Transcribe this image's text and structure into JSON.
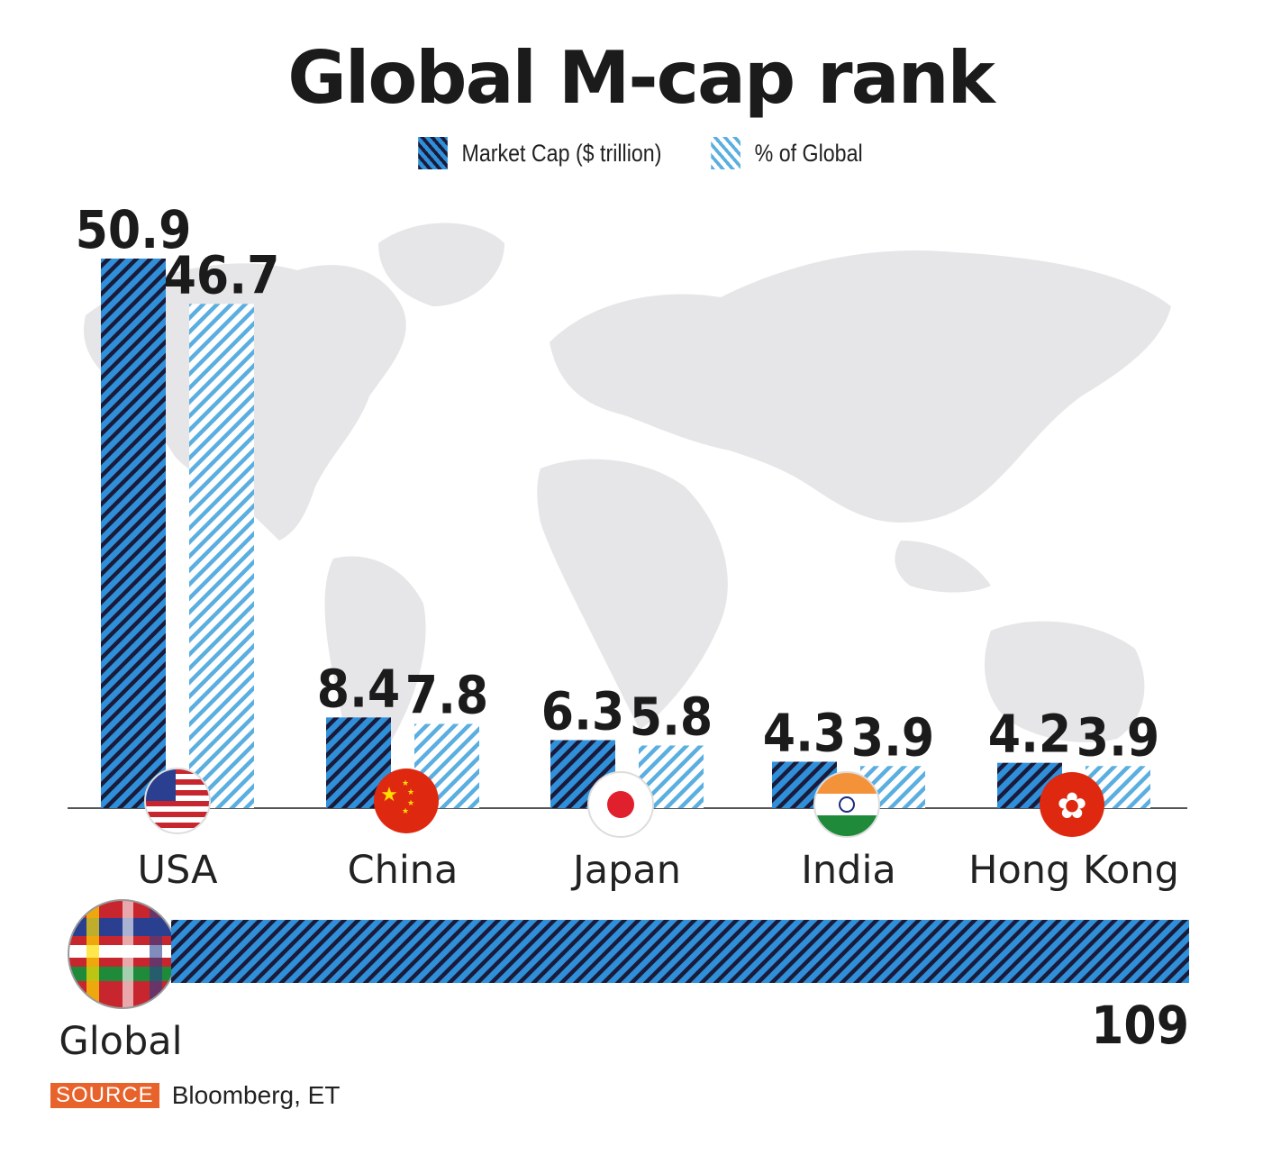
{
  "title": "Global M-cap rank",
  "legend": {
    "market_cap": "Market Cap ($ trillion)",
    "pct_global": "% of Global"
  },
  "colors": {
    "dark_stripe": "#1a1a3a",
    "blue": "#2f8fd8",
    "light_blue": "#5aaee0",
    "source_tag": "#e8622b",
    "map": "#e6e6e8"
  },
  "chart_data": {
    "type": "bar",
    "title": "Global M-cap rank",
    "categories": [
      "USA",
      "China",
      "Japan",
      "India",
      "Hong Kong"
    ],
    "series": [
      {
        "name": "Market Cap ($ trillion)",
        "values": [
          50.9,
          8.4,
          6.3,
          4.3,
          4.2
        ],
        "labels": [
          "50.9",
          "8.4",
          "6.3",
          "4.3",
          "4.2"
        ]
      },
      {
        "name": "% of Global",
        "values": [
          46.7,
          7.8,
          5.8,
          3.9,
          3.9
        ],
        "labels": [
          "46.7",
          "7.8",
          "5.8",
          "3.9",
          "3.9"
        ]
      }
    ],
    "total": {
      "label": "Global",
      "value": 109,
      "value_label": "109"
    },
    "flag_icons": [
      "usa-flag-icon",
      "china-flag-icon",
      "japan-flag-icon",
      "india-flag-icon",
      "hong-kong-flag-icon"
    ],
    "legend_position": "top-center",
    "grid": false
  },
  "source": {
    "tag": "SOURCE",
    "text": "Bloomberg, ET"
  }
}
